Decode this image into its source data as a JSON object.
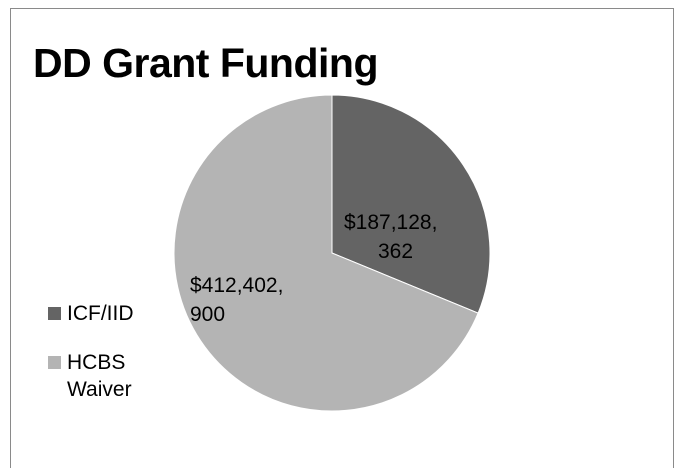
{
  "chart_data": {
    "type": "pie",
    "title": "DD Grant Funding",
    "series": [
      {
        "name": "ICF/IID",
        "value": 187128362,
        "label_lines": [
          "$187,128,",
          "362"
        ],
        "color": "#646464"
      },
      {
        "name": "HCBS Waiver",
        "value": 412402900,
        "label_lines": [
          "$412,402,",
          "900"
        ],
        "color": "#b4b4b4"
      }
    ],
    "legend_position": "left"
  }
}
